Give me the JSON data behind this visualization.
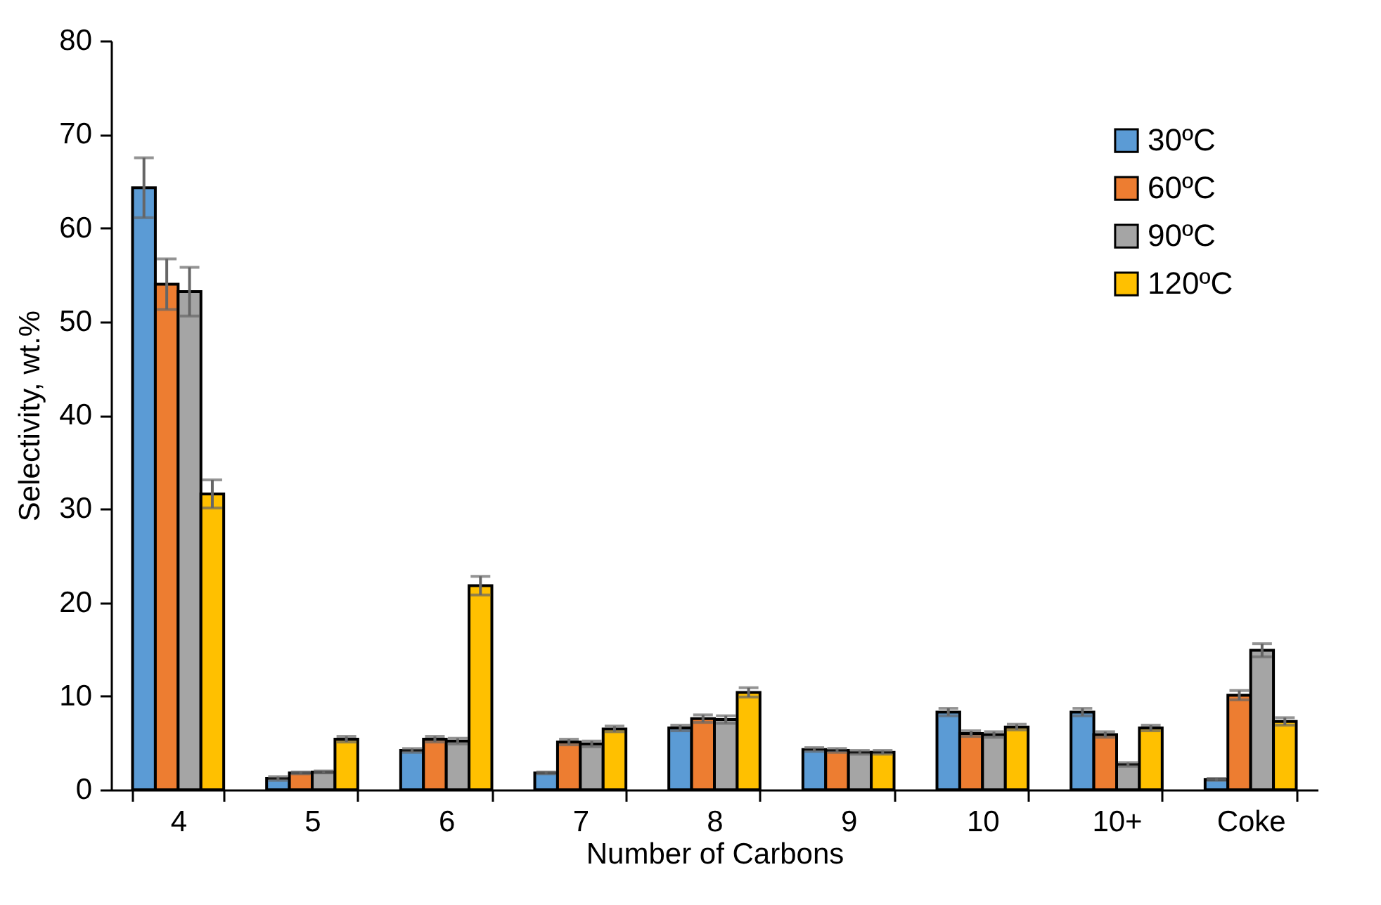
{
  "chart_data": {
    "type": "bar",
    "xlabel": "Number of Carbons",
    "ylabel": "Selectivity, wt.%",
    "categories": [
      "4",
      "5",
      "6",
      "7",
      "8",
      "9",
      "10",
      "10+",
      "Coke"
    ],
    "series": [
      {
        "name": "30ºC",
        "color": "#5b9bd5",
        "values": [
          64.3,
          1.2,
          4.2,
          1.8,
          6.6,
          4.3,
          8.3,
          8.3,
          1.1
        ],
        "errors": [
          3.2,
          0.2,
          0.2,
          0.1,
          0.3,
          0.2,
          0.4,
          0.4,
          0.1
        ]
      },
      {
        "name": "60ºC",
        "color": "#ed7d31",
        "values": [
          54.0,
          1.8,
          5.4,
          5.1,
          7.6,
          4.2,
          6.0,
          5.9,
          10.1
        ],
        "errors": [
          2.7,
          0.1,
          0.3,
          0.3,
          0.4,
          0.2,
          0.3,
          0.3,
          0.5
        ]
      },
      {
        "name": "90ºC",
        "color": "#a5a5a5",
        "values": [
          53.2,
          1.9,
          5.2,
          4.9,
          7.5,
          4.0,
          5.9,
          2.7,
          14.9
        ],
        "errors": [
          2.6,
          0.1,
          0.3,
          0.3,
          0.4,
          0.2,
          0.3,
          0.2,
          0.7
        ]
      },
      {
        "name": "120ºC",
        "color": "#ffc000",
        "values": [
          31.6,
          5.4,
          21.8,
          6.5,
          10.4,
          4.0,
          6.7,
          6.6,
          7.3
        ],
        "errors": [
          1.5,
          0.3,
          1.0,
          0.3,
          0.5,
          0.2,
          0.3,
          0.3,
          0.4
        ]
      }
    ],
    "ylim": [
      0,
      80
    ],
    "yticks": [
      0,
      10,
      20,
      30,
      40,
      50,
      60,
      70,
      80
    ],
    "grid": false,
    "legend": "top right"
  }
}
